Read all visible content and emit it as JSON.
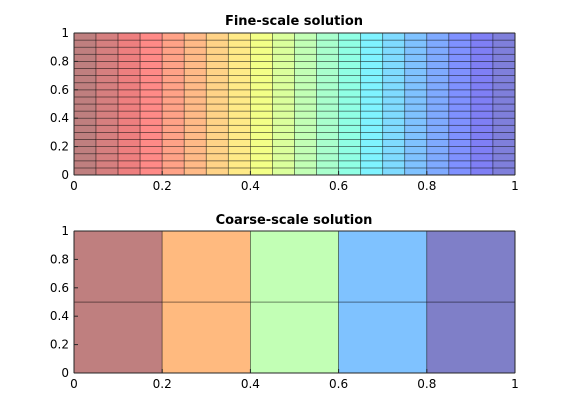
{
  "chart_data": [
    {
      "type": "heatmap",
      "title": "Fine-scale solution",
      "xlabel": "",
      "ylabel": "",
      "xlim": [
        0,
        1
      ],
      "ylim": [
        0,
        1
      ],
      "xticks": [
        "0",
        "0.2",
        "0.4",
        "0.6",
        "0.8",
        "1"
      ],
      "yticks": [
        "0",
        "0.2",
        "0.4",
        "0.6",
        "0.8",
        "1"
      ],
      "x_edges": [
        0,
        0.05,
        0.1,
        0.15,
        0.2,
        0.25,
        0.3,
        0.35,
        0.4,
        0.45,
        0.5,
        0.55,
        0.6,
        0.65,
        0.7,
        0.75,
        0.8,
        0.85,
        0.9,
        0.95,
        1.0
      ],
      "y_edges": [
        0,
        0.05,
        0.1,
        0.15,
        0.2,
        0.25,
        0.3,
        0.35,
        0.4,
        0.45,
        0.5,
        0.55,
        0.6,
        0.65,
        0.7,
        0.75,
        0.8,
        0.85,
        0.9,
        0.95,
        1.0
      ],
      "column_colors": [
        "#bf7f7f",
        "#d67f7f",
        "#ee7f7f",
        "#ff8a87",
        "#ffa287",
        "#ffba87",
        "#ffd387",
        "#ffea87",
        "#f3ff87",
        "#dbff9c",
        "#c2ffb5",
        "#a9ffcd",
        "#90ffe4",
        "#7ff3ff",
        "#7fdbff",
        "#7fc2ff",
        "#7faaff",
        "#7f91ff",
        "#7f7ff5",
        "#7f7fdb"
      ],
      "grid": true,
      "colormap": "jet"
    },
    {
      "type": "heatmap",
      "title": "Coarse-scale solution",
      "xlabel": "",
      "ylabel": "",
      "xlim": [
        0,
        1
      ],
      "ylim": [
        0,
        1
      ],
      "xticks": [
        "0",
        "0.2",
        "0.4",
        "0.6",
        "0.8",
        "1"
      ],
      "yticks": [
        "0",
        "0.2",
        "0.4",
        "0.6",
        "0.8",
        "1"
      ],
      "x_edges": [
        0,
        0.2,
        0.4,
        0.6,
        0.8,
        1.0
      ],
      "y_edges": [
        0,
        0.5,
        1.0
      ],
      "column_colors": [
        "#bf7f7f",
        "#ffba7f",
        "#c2ffb5",
        "#7fc2ff",
        "#7f7fc8"
      ],
      "grid": true,
      "colormap": "jet"
    }
  ]
}
